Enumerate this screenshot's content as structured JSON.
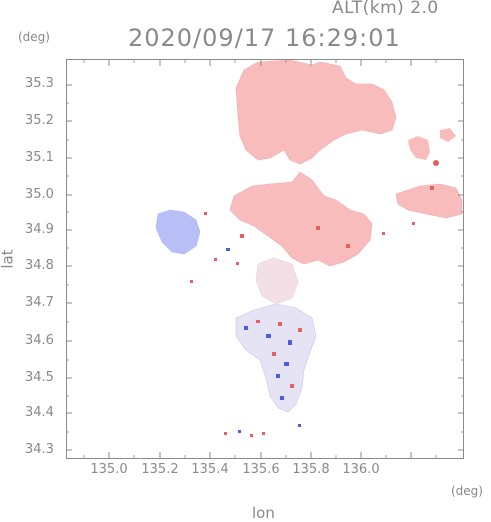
{
  "header": {
    "altitude": "ALT(km)  2.0",
    "timestamp": "2020/09/17 16:29:01"
  },
  "axes": {
    "y_unit": "(deg)",
    "x_unit": "(deg)",
    "x_label": "lon",
    "y_label": "lat",
    "x_ticks": [
      "135.0",
      "135.2",
      "135.4",
      "135.6",
      "135.8",
      "136.0"
    ],
    "y_ticks": [
      "35.3",
      "35.2",
      "35.1",
      "35.0",
      "34.9",
      "34.8",
      "34.7",
      "34.6",
      "34.5",
      "34.4",
      "34.3"
    ]
  },
  "colors": {
    "axis": "#8a8a8a",
    "receding": "#f7b3b3",
    "approaching": "#aab4f5",
    "strong_receding": "#e86060",
    "strong_approaching": "#4a5fe0"
  }
}
